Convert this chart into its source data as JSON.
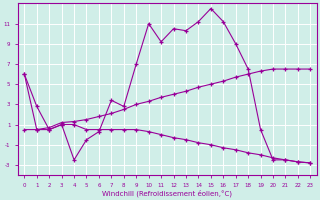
{
  "xlabel": "Windchill (Refroidissement éolien,°C)",
  "line_color": "#990099",
  "bg_color": "#d0eee8",
  "grid_color": "#b8ddd8",
  "xlim": [
    -0.5,
    23.5
  ],
  "ylim": [
    -4,
    13
  ],
  "yticks": [
    -3,
    -1,
    1,
    3,
    5,
    7,
    9,
    11
  ],
  "xticks": [
    0,
    1,
    2,
    3,
    4,
    5,
    6,
    7,
    8,
    9,
    10,
    11,
    12,
    13,
    14,
    15,
    16,
    17,
    18,
    19,
    20,
    21,
    22,
    23
  ],
  "s_zigzag_y": [
    6.0,
    2.8,
    0.5,
    1.0,
    -2.5,
    -0.5,
    0.3,
    3.4,
    2.8,
    7.0,
    11.0,
    9.2,
    10.5,
    10.3,
    11.2,
    12.5,
    11.2,
    9.0,
    6.5,
    0.5,
    -2.5,
    -2.5,
    -2.7,
    -2.8
  ],
  "s_rising_y": [
    0.5,
    0.5,
    0.7,
    1.2,
    1.3,
    1.5,
    1.8,
    2.1,
    2.5,
    3.0,
    3.3,
    3.7,
    4.0,
    4.3,
    4.7,
    5.0,
    5.3,
    5.7,
    6.0,
    6.3,
    6.5,
    6.5,
    6.5,
    6.5
  ],
  "s_declining_y": [
    6.0,
    0.5,
    0.5,
    1.0,
    1.0,
    0.5,
    0.5,
    0.5,
    0.5,
    0.5,
    0.3,
    0.0,
    -0.3,
    -0.5,
    -0.8,
    -1.0,
    -1.3,
    -1.5,
    -1.8,
    -2.0,
    -2.3,
    -2.5,
    -2.7,
    -2.8
  ]
}
